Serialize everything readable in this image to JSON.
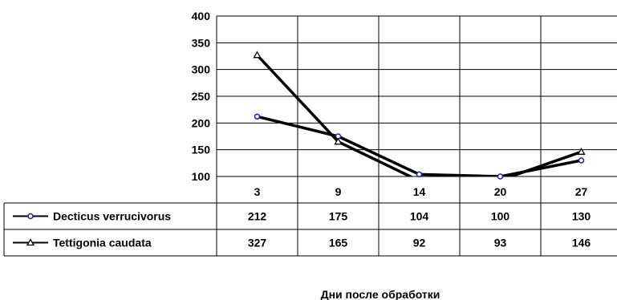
{
  "chart_data": {
    "type": "line",
    "title": "",
    "xlabel": "Дни после обработки",
    "ylabel": "",
    "ylim": [
      100,
      400
    ],
    "yticks": [
      100,
      150,
      200,
      250,
      300,
      350,
      400
    ],
    "grid": true,
    "legend": "data-table-left",
    "categories": [
      "3",
      "9",
      "14",
      "20",
      "27"
    ],
    "series": [
      {
        "name": "Decticus verrucivorus",
        "marker": "circle",
        "values": [
          212,
          175,
          104,
          100,
          130
        ],
        "color": "#000000",
        "marker_color": "#1f1fa8"
      },
      {
        "name": "Tettigonia caudata",
        "marker": "triangle",
        "values": [
          327,
          165,
          92,
          93,
          146
        ],
        "color": "#000000",
        "marker_color": "#000000"
      }
    ]
  }
}
